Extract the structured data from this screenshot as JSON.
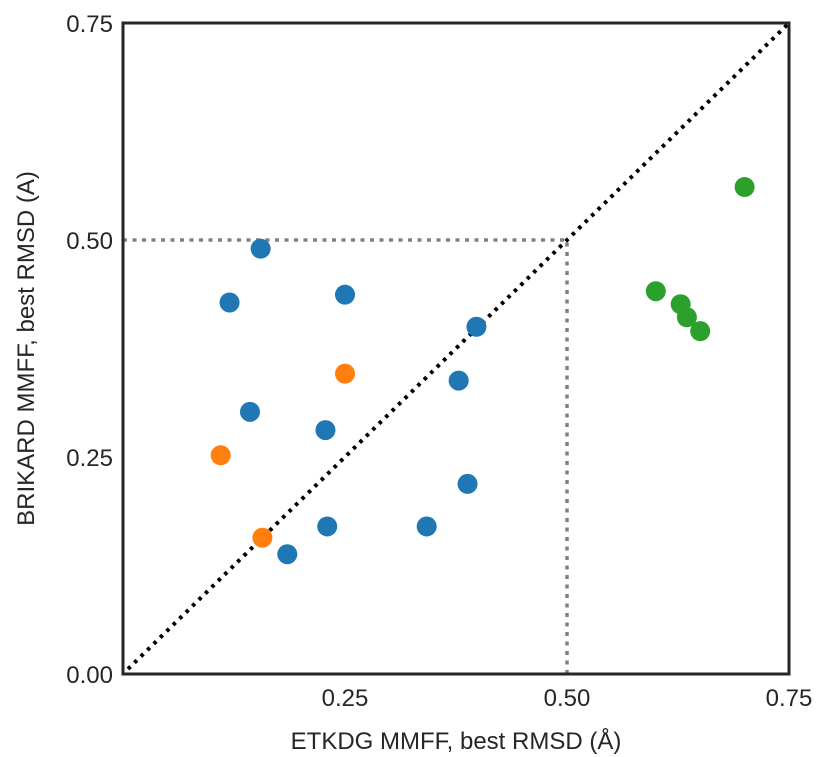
{
  "chart_data": {
    "type": "scatter",
    "title": "",
    "xlabel": "ETKDG MMFF, best RMSD (Å)",
    "ylabel": "BRIKARD MMFF, best RMSD (A)",
    "xlim": [
      0,
      0.75
    ],
    "ylim": [
      0,
      0.75
    ],
    "xticks": [
      "0.25",
      "0.50",
      "0.75"
    ],
    "yticks": [
      "0.00",
      "0.25",
      "0.50",
      "0.75"
    ],
    "xtick_values": [
      0.25,
      0.5,
      0.75
    ],
    "ytick_values": [
      0.0,
      0.25,
      0.5,
      0.75
    ],
    "grid": false,
    "reference_lines": [
      {
        "kind": "diagonal",
        "from": [
          0,
          0
        ],
        "to": [
          0.75,
          0.75
        ],
        "style": "dotted",
        "color": "#000000"
      },
      {
        "kind": "horizontal",
        "y": 0.5,
        "x_range": [
          0,
          0.5
        ],
        "style": "dotted",
        "color": "#808080"
      },
      {
        "kind": "vertical",
        "x": 0.5,
        "y_range": [
          0,
          0.5
        ],
        "style": "dotted",
        "color": "#808080"
      }
    ],
    "series": [
      {
        "color": "#1f77b4",
        "points": [
          [
            0.155,
            0.49
          ],
          [
            0.12,
            0.428
          ],
          [
            0.25,
            0.437
          ],
          [
            0.398,
            0.4
          ],
          [
            0.378,
            0.338
          ],
          [
            0.143,
            0.302
          ],
          [
            0.228,
            0.281
          ],
          [
            0.388,
            0.219
          ],
          [
            0.23,
            0.17
          ],
          [
            0.342,
            0.17
          ],
          [
            0.185,
            0.138
          ]
        ]
      },
      {
        "color": "#ff7f0e",
        "points": [
          [
            0.25,
            0.346
          ],
          [
            0.11,
            0.252
          ],
          [
            0.157,
            0.157
          ]
        ]
      },
      {
        "color": "#2ca02c",
        "points": [
          [
            0.7,
            0.561
          ],
          [
            0.6,
            0.441
          ],
          [
            0.628,
            0.426
          ],
          [
            0.635,
            0.411
          ],
          [
            0.65,
            0.395
          ]
        ]
      }
    ]
  }
}
